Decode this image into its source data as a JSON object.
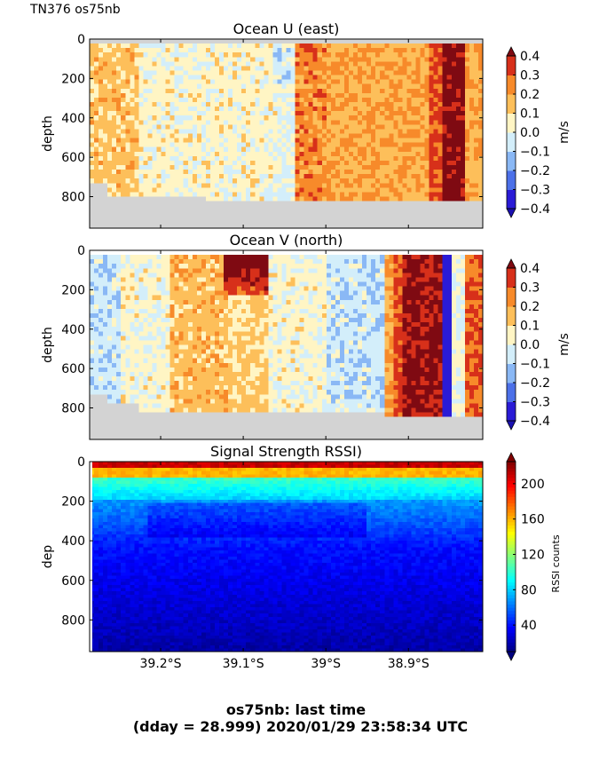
{
  "header": {
    "label": "TN376 os75nb"
  },
  "footer": {
    "line1": "os75nb: last time",
    "line2": "(dday = 28.999) 2020/01/29 23:58:34 UTC"
  },
  "chart_data": [
    {
      "type": "heatmap",
      "title": "Ocean U (east)",
      "ylabel": "depth",
      "y_ticks": [
        "0",
        "200",
        "400",
        "600",
        "800"
      ],
      "y_tick_values": [
        0,
        200,
        400,
        600,
        800
      ],
      "ylim": [
        960,
        0
      ],
      "x_tick_labels": [],
      "colorbar": {
        "label": "m/s",
        "tick_labels": [
          "0.4",
          "0.3",
          "0.2",
          "0.1",
          "0.0",
          "−0.1",
          "−0.2",
          "−0.3",
          "−0.4"
        ],
        "levels": [
          -0.4,
          -0.3,
          -0.2,
          -0.1,
          0.0,
          0.1,
          0.2,
          0.3,
          0.4
        ]
      },
      "colormap": "RdYlBu-diverging",
      "no_data_color": "#d3d3d3"
    },
    {
      "type": "heatmap",
      "title": "Ocean V (north)",
      "ylabel": "depth",
      "y_ticks": [
        "0",
        "200",
        "400",
        "600",
        "800"
      ],
      "y_tick_values": [
        0,
        200,
        400,
        600,
        800
      ],
      "ylim": [
        960,
        0
      ],
      "x_tick_labels": [],
      "colorbar": {
        "label": "m/s",
        "tick_labels": [
          "0.4",
          "0.3",
          "0.2",
          "0.1",
          "0.0",
          "−0.1",
          "−0.2",
          "−0.3",
          "−0.4"
        ],
        "levels": [
          -0.4,
          -0.3,
          -0.2,
          -0.1,
          0.0,
          0.1,
          0.2,
          0.3,
          0.4
        ]
      },
      "colormap": "RdYlBu-diverging",
      "no_data_color": "#d3d3d3"
    },
    {
      "type": "heatmap",
      "title": "Signal Strength RSSI)",
      "ylabel": "dep",
      "y_ticks": [
        "0",
        "200",
        "400",
        "600",
        "800"
      ],
      "y_tick_values": [
        0,
        200,
        400,
        600,
        800
      ],
      "ylim": [
        960,
        0
      ],
      "x_tick_labels": [
        "39.2°S",
        "39.1°S",
        "39°S",
        "38.9°S"
      ],
      "x_tick_values": [
        -39.2,
        -39.1,
        -39.0,
        -38.9
      ],
      "xlim": [
        -39.286,
        -38.81
      ],
      "colorbar": {
        "label": "RSSI counts",
        "tick_labels": [
          "200",
          "160",
          "120",
          "80",
          "40"
        ],
        "tick_values": [
          200,
          160,
          120,
          80,
          40
        ],
        "range": [
          10,
          225
        ]
      },
      "colormap": "jet"
    }
  ]
}
